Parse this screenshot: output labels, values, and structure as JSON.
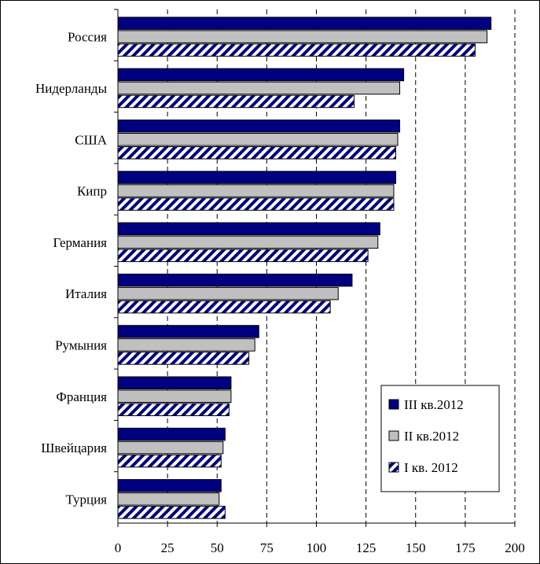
{
  "chart_data": {
    "type": "bar",
    "orientation": "horizontal",
    "categories": [
      "Россия",
      "Нидерланды",
      "США",
      "Кипр",
      "Германия",
      "Италия",
      "Румыния",
      "Франция",
      "Швейцария",
      "Турция"
    ],
    "series": [
      {
        "name": "III кв.2012",
        "values": [
          188,
          144,
          142,
          140,
          132,
          118,
          71,
          57,
          54,
          52
        ],
        "color": "#000080",
        "pattern": "solid"
      },
      {
        "name": "II кв.2012",
        "values": [
          186,
          142,
          141,
          139,
          131,
          111,
          69,
          57,
          53,
          51
        ],
        "color": "#c0c0c0",
        "pattern": "solid"
      },
      {
        "name": "I кв. 2012",
        "values": [
          180,
          119,
          140,
          139,
          126,
          107,
          66,
          56,
          52,
          54
        ],
        "color": "#000080",
        "pattern": "diagonal-hatch"
      }
    ],
    "xlim": [
      0,
      200
    ],
    "xticks": [
      "0",
      "25",
      "50",
      "75",
      "100",
      "125",
      "150",
      "175",
      "200"
    ],
    "grid": "vertical-dashed",
    "legend_position": "bottom-right",
    "title": "",
    "xlabel": "",
    "ylabel": ""
  }
}
